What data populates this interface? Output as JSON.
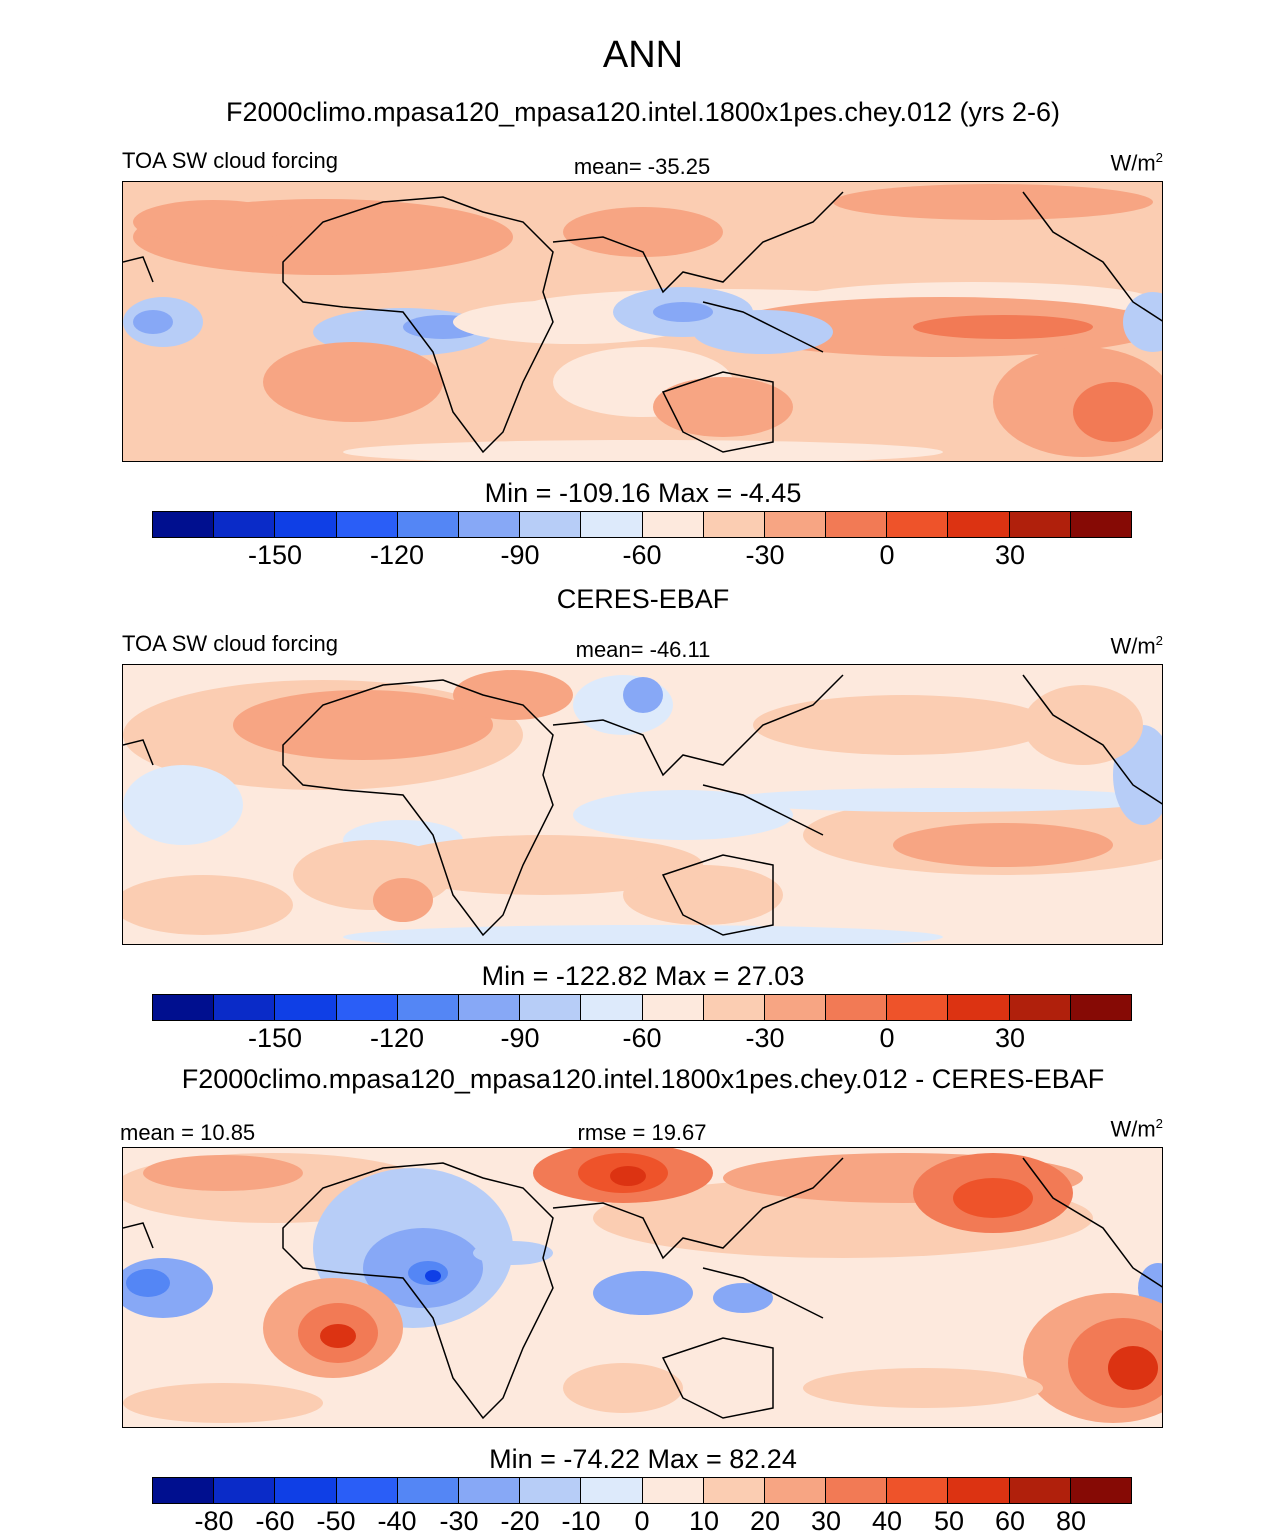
{
  "title": "ANN",
  "colors": {
    "scale": [
      "#000f8f",
      "#0a2bc8",
      "#0f3fe6",
      "#2a5ef7",
      "#5486f5",
      "#87a8f6",
      "#b7cdf7",
      "#ddeafb",
      "#fde9dd",
      "#fbcdb2",
      "#f7a583",
      "#f27a55",
      "#ee532a",
      "#dc3312",
      "#b0200c",
      "#860a05"
    ]
  },
  "chart_data": [
    {
      "type": "heatmap",
      "title": "F2000climo.mpasa120_mpasa120.intel.1800x1pes.chey.012 (yrs 2-6)",
      "variable": "TOA SW cloud forcing",
      "stat_center": "mean= -35.25",
      "units": "W/m",
      "units_sup": "2",
      "min_max": "Min = -109.16 Max =  -4.45",
      "colorbar_ticks": [
        "-150",
        "-120",
        "-90",
        "-60",
        "-30",
        "0",
        "30"
      ],
      "colorbar_levels": [
        -180,
        -165,
        -150,
        -135,
        -120,
        -105,
        -90,
        -75,
        -60,
        -45,
        -30,
        -15,
        0,
        15,
        30,
        45
      ],
      "min": -109.16,
      "max": -4.45,
      "mean": -35.25
    },
    {
      "type": "heatmap",
      "title": "CERES-EBAF",
      "variable": "TOA SW cloud forcing",
      "stat_center": "mean= -46.11",
      "units": "W/m",
      "units_sup": "2",
      "min_max": "Min = -122.82 Max =  27.03",
      "colorbar_ticks": [
        "-150",
        "-120",
        "-90",
        "-60",
        "-30",
        "0",
        "30"
      ],
      "colorbar_levels": [
        -180,
        -165,
        -150,
        -135,
        -120,
        -105,
        -90,
        -75,
        -60,
        -45,
        -30,
        -15,
        0,
        15,
        30,
        45
      ],
      "min": -122.82,
      "max": 27.03,
      "mean": -46.11
    },
    {
      "type": "heatmap",
      "title": "F2000climo.mpasa120_mpasa120.intel.1800x1pes.chey.012 - CERES-EBAF",
      "stat_left": "mean =  10.85",
      "stat_center": "rmse =  19.67",
      "units": "W/m",
      "units_sup": "2",
      "min_max": "Min = -74.22 Max =  82.24",
      "colorbar_ticks": [
        "-80",
        "-60",
        "-50",
        "-40",
        "-30",
        "-20",
        "-10",
        "0",
        "10",
        "20",
        "30",
        "40",
        "50",
        "60",
        "80"
      ],
      "min": -74.22,
      "max": 82.24,
      "mean": 10.85,
      "rmse": 19.67
    }
  ]
}
